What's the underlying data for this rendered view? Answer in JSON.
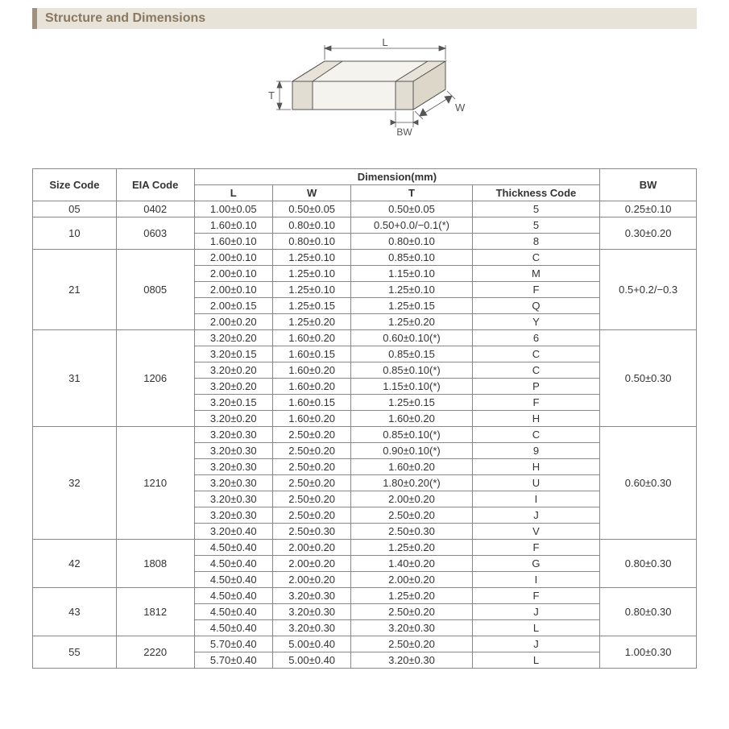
{
  "header": {
    "title": "Structure and Dimensions"
  },
  "diagram": {
    "labels": {
      "L": "L",
      "W": "W",
      "T": "T",
      "BW": "BW"
    },
    "stroke": "#555555",
    "fill": "#f5f3ee",
    "fontsize": 13
  },
  "table": {
    "columns": {
      "size_code": "Size Code",
      "eia_code": "EIA Code",
      "dimension_header": "Dimension(mm)",
      "L": "L",
      "W": "W",
      "T": "T",
      "thickness_code": "Thickness  Code",
      "BW": "BW"
    },
    "groups": [
      {
        "size_code": "05",
        "eia_code": "0402",
        "bw": "0.25±0.10",
        "rows": [
          {
            "L": "1.00±0.05",
            "W": "0.50±0.05",
            "T": "0.50±0.05",
            "tc": "5"
          }
        ]
      },
      {
        "size_code": "10",
        "eia_code": "0603",
        "bw": "0.30±0.20",
        "rows": [
          {
            "L": "1.60±0.10",
            "W": "0.80±0.10",
            "T": "0.50+0.0/−0.1(*)",
            "tc": "5"
          },
          {
            "L": "1.60±0.10",
            "W": "0.80±0.10",
            "T": "0.80±0.10",
            "tc": "8"
          }
        ]
      },
      {
        "size_code": "21",
        "eia_code": "0805",
        "bw": "0.5+0.2/−0.3",
        "rows": [
          {
            "L": "2.00±0.10",
            "W": "1.25±0.10",
            "T": "0.85±0.10",
            "tc": "C"
          },
          {
            "L": "2.00±0.10",
            "W": "1.25±0.10",
            "T": "1.15±0.10",
            "tc": "M"
          },
          {
            "L": "2.00±0.10",
            "W": "1.25±0.10",
            "T": "1.25±0.10",
            "tc": "F"
          },
          {
            "L": "2.00±0.15",
            "W": "1.25±0.15",
            "T": "1.25±0.15",
            "tc": "Q"
          },
          {
            "L": "2.00±0.20",
            "W": "1.25±0.20",
            "T": "1.25±0.20",
            "tc": "Y"
          }
        ]
      },
      {
        "size_code": "31",
        "eia_code": "1206",
        "bw": "0.50±0.30",
        "rows": [
          {
            "L": "3.20±0.20",
            "W": "1.60±0.20",
            "T": "0.60±0.10(*)",
            "tc": "6"
          },
          {
            "L": "3.20±0.15",
            "W": "1.60±0.15",
            "T": "0.85±0.15",
            "tc": "C"
          },
          {
            "L": "3.20±0.20",
            "W": "1.60±0.20",
            "T": "0.85±0.10(*)",
            "tc": "C"
          },
          {
            "L": "3.20±0.20",
            "W": "1.60±0.20",
            "T": "1.15±0.10(*)",
            "tc": "P"
          },
          {
            "L": "3.20±0.15",
            "W": "1.60±0.15",
            "T": "1.25±0.15",
            "tc": "F"
          },
          {
            "L": "3.20±0.20",
            "W": "1.60±0.20",
            "T": "1.60±0.20",
            "tc": "H"
          }
        ]
      },
      {
        "size_code": "32",
        "eia_code": "1210",
        "bw": "0.60±0.30",
        "rows": [
          {
            "L": "3.20±0.30",
            "W": "2.50±0.20",
            "T": "0.85±0.10(*)",
            "tc": "C"
          },
          {
            "L": "3.20±0.30",
            "W": "2.50±0.20",
            "T": "0.90±0.10(*)",
            "tc": "9"
          },
          {
            "L": "3.20±0.30",
            "W": "2.50±0.20",
            "T": "1.60±0.20",
            "tc": "H"
          },
          {
            "L": "3.20±0.30",
            "W": "2.50±0.20",
            "T": "1.80±0.20(*)",
            "tc": "U"
          },
          {
            "L": "3.20±0.30",
            "W": "2.50±0.20",
            "T": "2.00±0.20",
            "tc": "I"
          },
          {
            "L": "3.20±0.30",
            "W": "2.50±0.20",
            "T": "2.50±0.20",
            "tc": "J"
          },
          {
            "L": "3.20±0.40",
            "W": "2.50±0.30",
            "T": "2.50±0.30",
            "tc": "V"
          }
        ]
      },
      {
        "size_code": "42",
        "eia_code": "1808",
        "bw": "0.80±0.30",
        "rows": [
          {
            "L": "4.50±0.40",
            "W": "2.00±0.20",
            "T": "1.25±0.20",
            "tc": "F"
          },
          {
            "L": "4.50±0.40",
            "W": "2.00±0.20",
            "T": "1.40±0.20",
            "tc": "G"
          },
          {
            "L": "4.50±0.40",
            "W": "2.00±0.20",
            "T": "2.00±0.20",
            "tc": "I"
          }
        ]
      },
      {
        "size_code": "43",
        "eia_code": "1812",
        "bw": "0.80±0.30",
        "rows": [
          {
            "L": "4.50±0.40",
            "W": "3.20±0.30",
            "T": "1.25±0.20",
            "tc": "F"
          },
          {
            "L": "4.50±0.40",
            "W": "3.20±0.30",
            "T": "2.50±0.20",
            "tc": "J"
          },
          {
            "L": "4.50±0.40",
            "W": "3.20±0.30",
            "T": "3.20±0.30",
            "tc": "L"
          }
        ]
      },
      {
        "size_code": "55",
        "eia_code": "2220",
        "bw": "1.00±0.30",
        "rows": [
          {
            "L": "5.70±0.40",
            "W": "5.00±0.40",
            "T": "2.50±0.20",
            "tc": "J"
          },
          {
            "L": "5.70±0.40",
            "W": "5.00±0.40",
            "T": "3.20±0.30",
            "tc": "L"
          }
        ]
      }
    ]
  }
}
